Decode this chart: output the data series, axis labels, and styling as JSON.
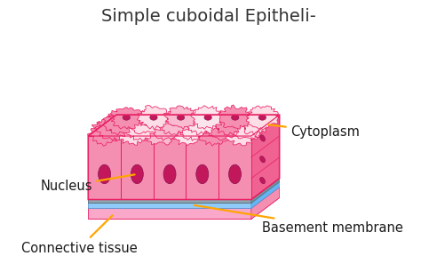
{
  "title": "Simple cuboidal Epitheli-",
  "title_fontsize": 14,
  "title_color": "#333333",
  "bg_color": "#ffffff",
  "labels": {
    "nucleus": "Nucleus",
    "cytoplasm": "Cytoplasm",
    "basement": "Basement membrane",
    "connective": "Connective tissue"
  },
  "label_fontsize": 10.5,
  "label_color": "#1a1a1a",
  "arrow_color": "#FFA500",
  "cell_pink_main": "#F48FB1",
  "cell_pink_light": "#FDDDE6",
  "cell_pink_mid": "#F06292",
  "cell_pink_top": "#FCE4EC",
  "nucleus_color": "#C2185B",
  "basement_blue": "#90CAF9",
  "basement_gray": "#78909C",
  "connective_pink": "#F9A8C9",
  "border_color": "#E91E63"
}
